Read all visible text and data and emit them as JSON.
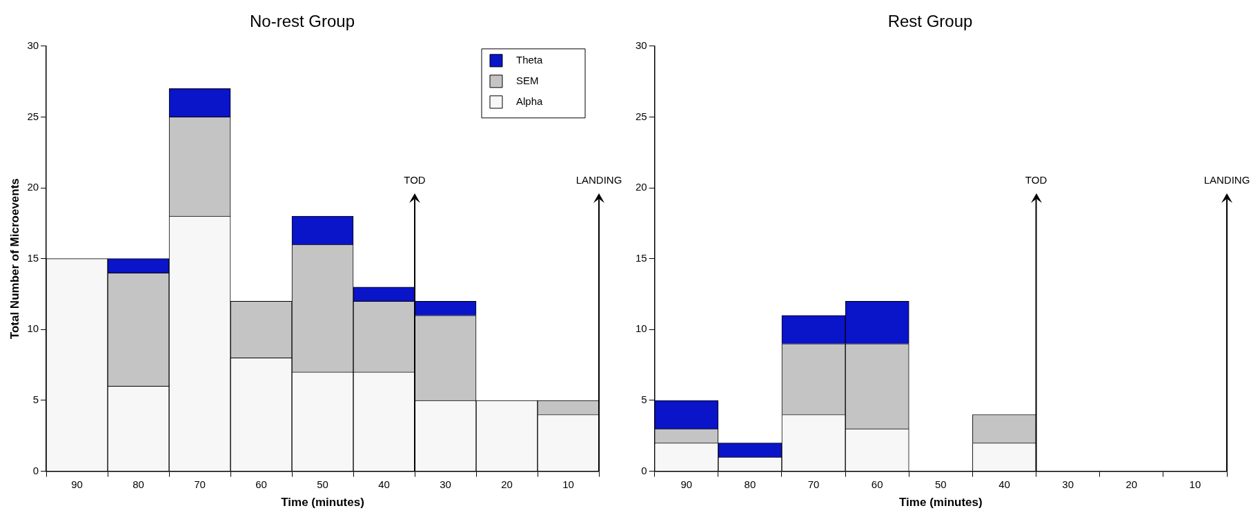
{
  "chart_data": [
    {
      "type": "bar",
      "title": "No-rest Group",
      "xlabel": "Time (minutes)",
      "ylabel": "Total Number of Microevents",
      "stacked": true,
      "x": [
        90,
        80,
        70,
        60,
        50,
        40,
        30,
        20,
        10
      ],
      "xlim": [
        95,
        5
      ],
      "xticks": [
        90,
        80,
        70,
        60,
        50,
        40,
        30,
        20,
        10
      ],
      "ylim": [
        0,
        30
      ],
      "yticks": [
        0,
        5,
        10,
        15,
        20,
        25,
        30
      ],
      "legend": "top right",
      "series": [
        {
          "name": "Alpha",
          "color": "#f7f7f7",
          "values": [
            15,
            6,
            18,
            8,
            7,
            7,
            5,
            5,
            4
          ]
        },
        {
          "name": "SEM",
          "color": "#c4c4c4",
          "values": [
            0,
            8,
            7,
            4,
            9,
            5,
            6,
            0,
            1
          ]
        },
        {
          "name": "Theta",
          "color": "#0a14c8",
          "values": [
            0,
            1,
            2,
            0,
            2,
            1,
            1,
            0,
            0
          ]
        }
      ],
      "ref_lines": [
        {
          "axis": "x",
          "value": 35,
          "label": "TOD"
        },
        {
          "axis": "x",
          "value": 5,
          "label": "LANDING"
        }
      ]
    },
    {
      "type": "bar",
      "title": "Rest Group",
      "xlabel": "Time (minutes)",
      "stacked": true,
      "x": [
        90,
        80,
        70,
        60,
        50,
        40,
        30,
        20,
        10
      ],
      "xlim": [
        95,
        5
      ],
      "xticks": [
        90,
        80,
        70,
        60,
        50,
        40,
        30,
        20,
        10
      ],
      "ylim": [
        0,
        30
      ],
      "yticks": [
        0,
        5,
        10,
        15,
        20,
        25,
        30
      ],
      "series": [
        {
          "color": "#f7f7f7",
          "values": [
            2,
            1,
            4,
            3,
            0,
            2,
            0,
            0,
            0
          ]
        },
        {
          "color": "#c4c4c4",
          "values": [
            1,
            0,
            5,
            6,
            0,
            2,
            0,
            0,
            0
          ]
        },
        {
          "color": "#0a14c8",
          "values": [
            2,
            1,
            2,
            3,
            0,
            0,
            0,
            0,
            0
          ]
        }
      ],
      "ref_lines": [
        {
          "axis": "x",
          "value": 35,
          "label": "TOD"
        },
        {
          "axis": "x",
          "value": 5,
          "label": "LANDING"
        }
      ]
    }
  ]
}
